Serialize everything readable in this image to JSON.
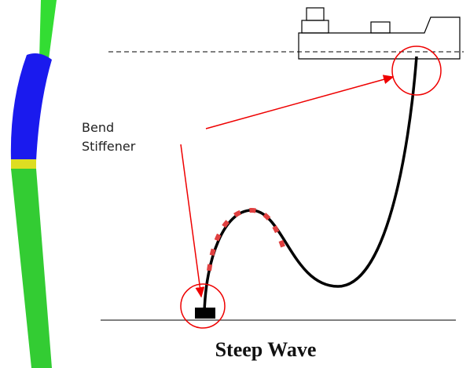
{
  "annotation": {
    "lines": [
      "Bend",
      "Stiffener"
    ]
  },
  "caption": "Steep Wave"
}
